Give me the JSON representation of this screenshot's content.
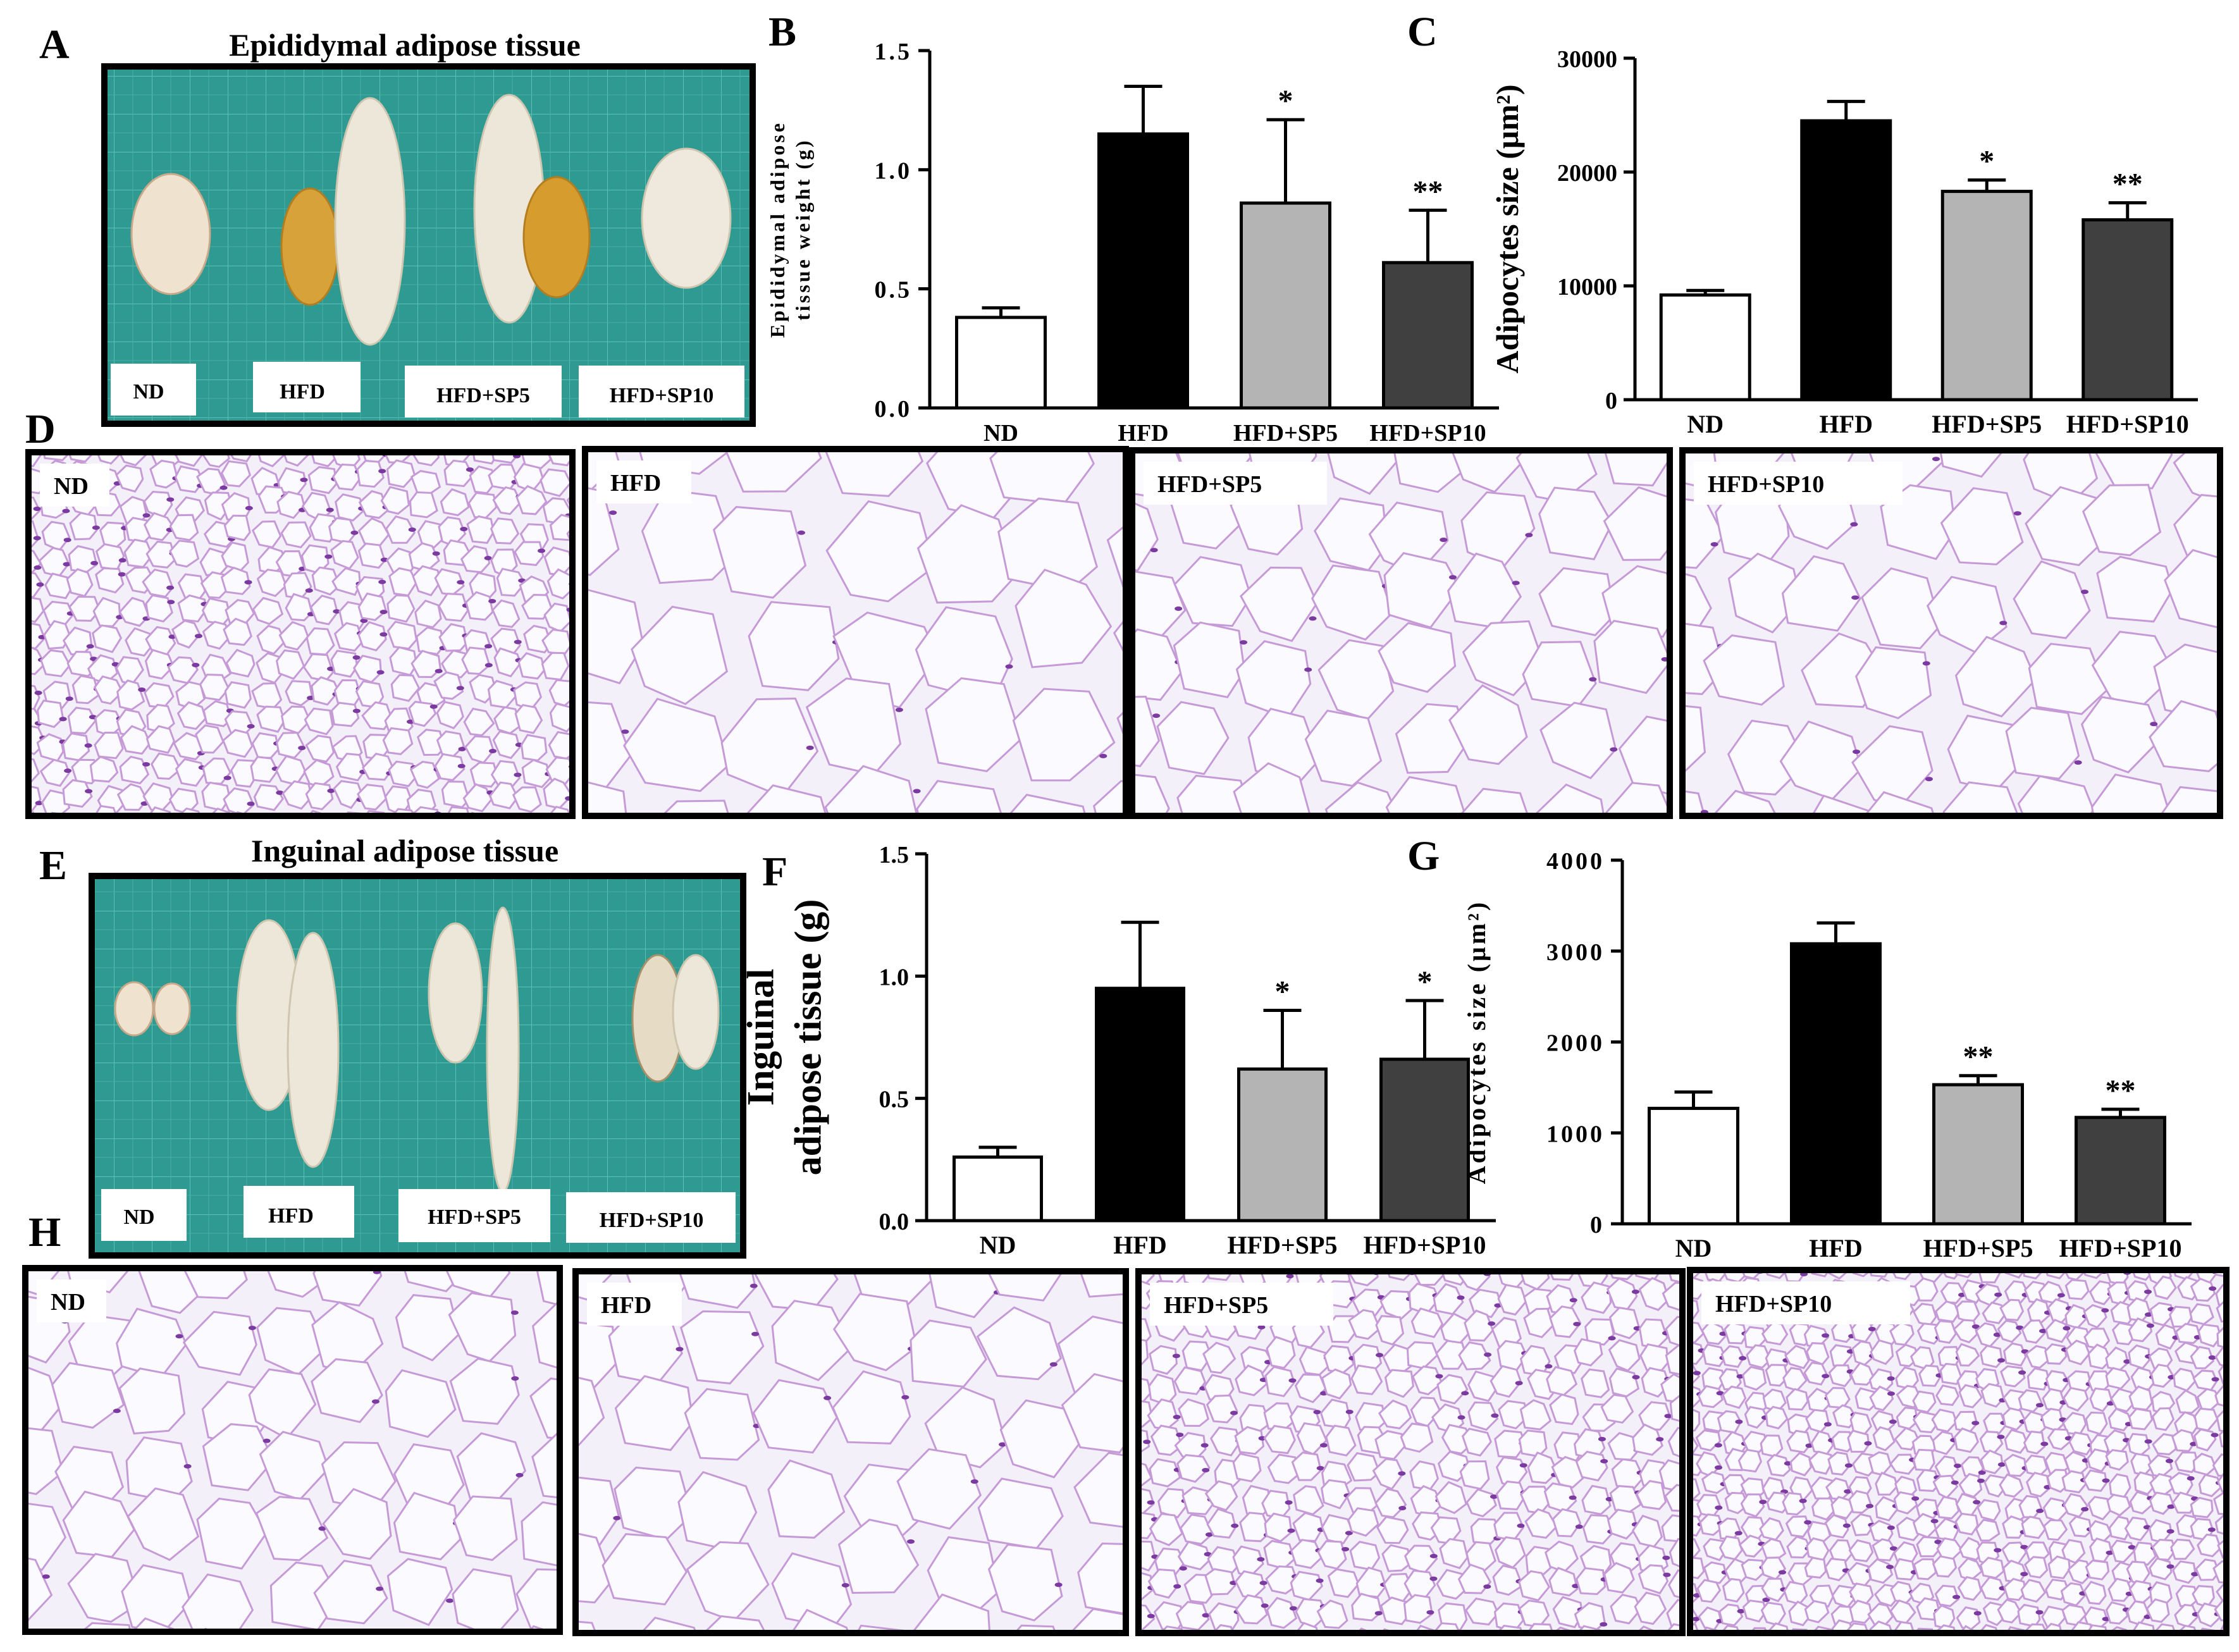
{
  "figure": {
    "panel_letters": {
      "A": "A",
      "B": "B",
      "C": "C",
      "D": "D",
      "E": "E",
      "F": "F",
      "G": "G",
      "H": "H"
    },
    "photo_titles": {
      "A": "Epididymal adipose tissue",
      "E": "Inguinal adipose tissue"
    },
    "photo_labels": {
      "A": [
        "ND",
        "HFD",
        "HFD+SP5",
        "HFD+SP10"
      ],
      "E": [
        "ND",
        "HFD",
        "HFD+SP5",
        "HFD+SP10"
      ]
    },
    "histology_labels": {
      "D": [
        "ND",
        "HFD",
        "HFD+SP5",
        "HFD+SP10"
      ],
      "H": [
        "ND",
        "HFD",
        "HFD+SP5",
        "HFD+SP10"
      ]
    },
    "colors": {
      "ND": "#ffffff",
      "HFD": "#000000",
      "HFD+SP5": "#b4b4b4",
      "HFD+SP10": "#404040",
      "background_photo": "#2e9a92",
      "histology_stain": "#7b3aa0",
      "histology_bg": "#f3f0fa"
    }
  },
  "chart_data": [
    {
      "id": "B",
      "type": "bar",
      "categories": [
        "ND",
        "HFD",
        "HFD+SP5",
        "HFD+SP10"
      ],
      "values": [
        0.38,
        1.15,
        0.86,
        0.61
      ],
      "errors": [
        0.04,
        0.2,
        0.35,
        0.22
      ],
      "significance": [
        "",
        "",
        "*",
        "**"
      ],
      "ylabel_lines": [
        "Epididymal adipose",
        "tissue weight (g)"
      ],
      "ylim": [
        0,
        1.5
      ],
      "yticks": [
        0.0,
        0.5,
        1.0,
        1.5
      ],
      "ytick_labels": [
        "0.0",
        "0.5",
        "1.0",
        "1.5"
      ]
    },
    {
      "id": "C",
      "type": "bar",
      "categories": [
        "ND",
        "HFD",
        "HFD+SP5",
        "HFD+SP10"
      ],
      "values": [
        9200,
        24500,
        18300,
        15800
      ],
      "errors": [
        400,
        1700,
        1000,
        1500
      ],
      "significance": [
        "",
        "",
        "*",
        "**"
      ],
      "ylabel_lines": [
        "Adipocytes size (μm²)"
      ],
      "ylim": [
        0,
        30000
      ],
      "yticks": [
        0,
        10000,
        20000,
        30000
      ],
      "ytick_labels": [
        "0",
        "10000",
        "20000",
        "30000"
      ]
    },
    {
      "id": "F",
      "type": "bar",
      "categories": [
        "ND",
        "HFD",
        "HFD+SP5",
        "HFD+SP10"
      ],
      "values": [
        0.26,
        0.95,
        0.62,
        0.66
      ],
      "errors": [
        0.04,
        0.27,
        0.24,
        0.24
      ],
      "significance": [
        "",
        "",
        "*",
        "*"
      ],
      "ylabel_lines": [
        "Inguinal",
        "adipose tissue (g)"
      ],
      "ylim": [
        0,
        1.5
      ],
      "yticks": [
        0.0,
        0.5,
        1.0,
        1.5
      ],
      "ytick_labels": [
        "0.0",
        "0.5",
        "1.0",
        "1.5"
      ]
    },
    {
      "id": "G",
      "type": "bar",
      "categories": [
        "ND",
        "HFD",
        "HFD+SP5",
        "HFD+SP10"
      ],
      "values": [
        1270,
        3080,
        1530,
        1170
      ],
      "errors": [
        180,
        230,
        100,
        90
      ],
      "significance": [
        "",
        "",
        "**",
        "**"
      ],
      "ylabel_lines": [
        "Adipocytes size (μm²)"
      ],
      "ylim": [
        0,
        4000
      ],
      "yticks": [
        0,
        1000,
        2000,
        3000,
        4000
      ],
      "ytick_labels": [
        "0",
        "1000",
        "2000",
        "3000",
        "4000"
      ]
    }
  ]
}
